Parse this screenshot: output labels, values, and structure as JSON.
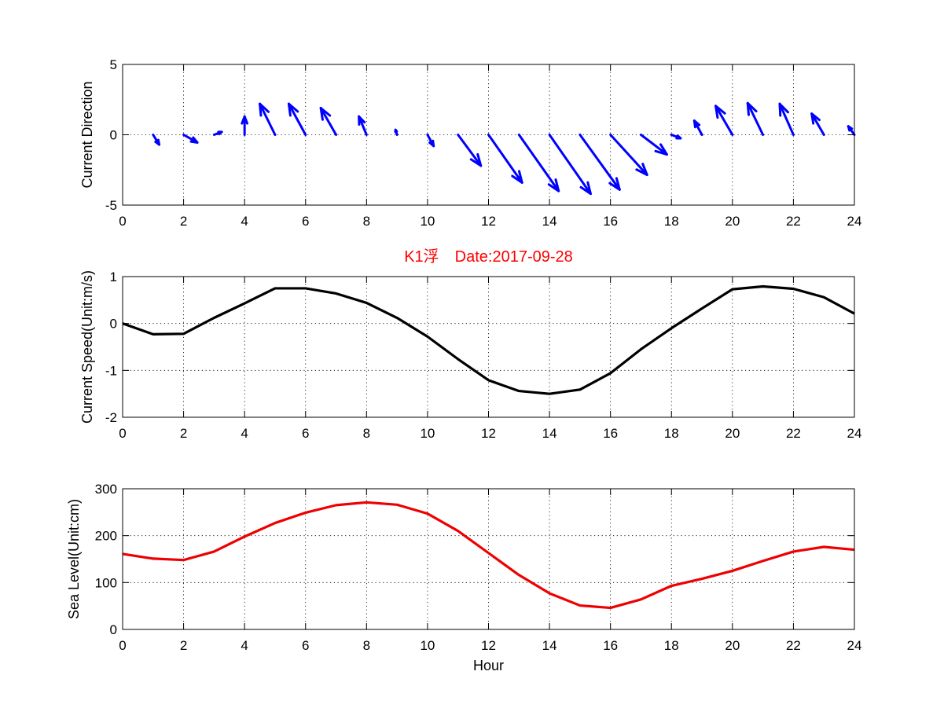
{
  "chart_data": [
    {
      "type": "quiver",
      "ylabel": "Current Direction",
      "xlim": [
        0,
        24
      ],
      "ylim": [
        -5,
        5
      ],
      "xticks": [
        0,
        2,
        4,
        6,
        8,
        10,
        12,
        14,
        16,
        18,
        20,
        22,
        24
      ],
      "yticks": [
        -5,
        0,
        5
      ],
      "grid": true,
      "color": "#0000ff",
      "vectors": [
        {
          "x": 1,
          "u": 0.2,
          "v": -0.7
        },
        {
          "x": 2,
          "u": 0.45,
          "v": -0.55
        },
        {
          "x": 3,
          "u": 0.25,
          "v": 0.2
        },
        {
          "x": 4,
          "u": 0.0,
          "v": 1.3
        },
        {
          "x": 5,
          "u": -0.5,
          "v": 2.2
        },
        {
          "x": 6,
          "u": -0.55,
          "v": 2.2
        },
        {
          "x": 7,
          "u": -0.5,
          "v": 1.9
        },
        {
          "x": 8,
          "u": -0.25,
          "v": 1.3
        },
        {
          "x": 9,
          "u": -0.05,
          "v": 0.35
        },
        {
          "x": 10,
          "u": 0.2,
          "v": -0.8
        },
        {
          "x": 11,
          "u": 0.75,
          "v": -2.2
        },
        {
          "x": 12,
          "u": 1.1,
          "v": -3.4
        },
        {
          "x": 13,
          "u": 1.3,
          "v": -4.0
        },
        {
          "x": 14,
          "u": 1.35,
          "v": -4.2
        },
        {
          "x": 15,
          "u": 1.3,
          "v": -3.9
        },
        {
          "x": 16,
          "u": 1.2,
          "v": -2.85
        },
        {
          "x": 17,
          "u": 0.85,
          "v": -1.4
        },
        {
          "x": 18,
          "u": 0.3,
          "v": -0.25
        },
        {
          "x": 19,
          "u": -0.25,
          "v": 1.0
        },
        {
          "x": 20,
          "u": -0.55,
          "v": 2.05
        },
        {
          "x": 21,
          "u": -0.5,
          "v": 2.25
        },
        {
          "x": 22,
          "u": -0.45,
          "v": 2.2
        },
        {
          "x": 23,
          "u": -0.4,
          "v": 1.5
        },
        {
          "x": 24,
          "u": -0.2,
          "v": 0.6
        }
      ]
    },
    {
      "type": "line",
      "title": "K1浮　Date:2017-09-28",
      "title_color": "#ff0000",
      "ylabel": "Current Speed(Unit:m/s)",
      "xlim": [
        0,
        24
      ],
      "ylim": [
        -2,
        1
      ],
      "xticks": [
        0,
        2,
        4,
        6,
        8,
        10,
        12,
        14,
        16,
        18,
        20,
        22,
        24
      ],
      "yticks": [
        -2,
        -1,
        0,
        1
      ],
      "grid": true,
      "color": "#000000",
      "x": [
        0,
        1,
        2,
        3,
        4,
        5,
        6,
        7,
        8,
        9,
        10,
        11,
        12,
        13,
        14,
        15,
        16,
        17,
        18,
        19,
        20,
        21,
        22,
        23,
        24
      ],
      "y": [
        0,
        -0.23,
        -0.22,
        0.12,
        0.43,
        0.75,
        0.75,
        0.64,
        0.44,
        0.12,
        -0.28,
        -0.76,
        -1.21,
        -1.44,
        -1.5,
        -1.41,
        -1.06,
        -0.55,
        -0.1,
        0.32,
        0.73,
        0.79,
        0.74,
        0.56,
        0.21
      ]
    },
    {
      "type": "line",
      "ylabel": "Sea Level(Unit:cm)",
      "xlabel": "Hour",
      "xlim": [
        0,
        24
      ],
      "ylim": [
        0,
        300
      ],
      "xticks": [
        0,
        2,
        4,
        6,
        8,
        10,
        12,
        14,
        16,
        18,
        20,
        22,
        24
      ],
      "yticks": [
        0,
        100,
        200,
        300
      ],
      "grid": true,
      "color": "#ee0000",
      "x": [
        0,
        1,
        2,
        3,
        4,
        5,
        6,
        7,
        8,
        9,
        10,
        11,
        12,
        13,
        14,
        15,
        16,
        17,
        18,
        19,
        20,
        21,
        22,
        23,
        24
      ],
      "y": [
        161,
        151,
        148,
        166,
        198,
        227,
        249,
        265,
        271,
        266,
        247,
        210,
        163,
        116,
        77,
        51,
        46,
        64,
        93,
        108,
        125,
        146,
        166,
        176,
        170
      ]
    }
  ]
}
